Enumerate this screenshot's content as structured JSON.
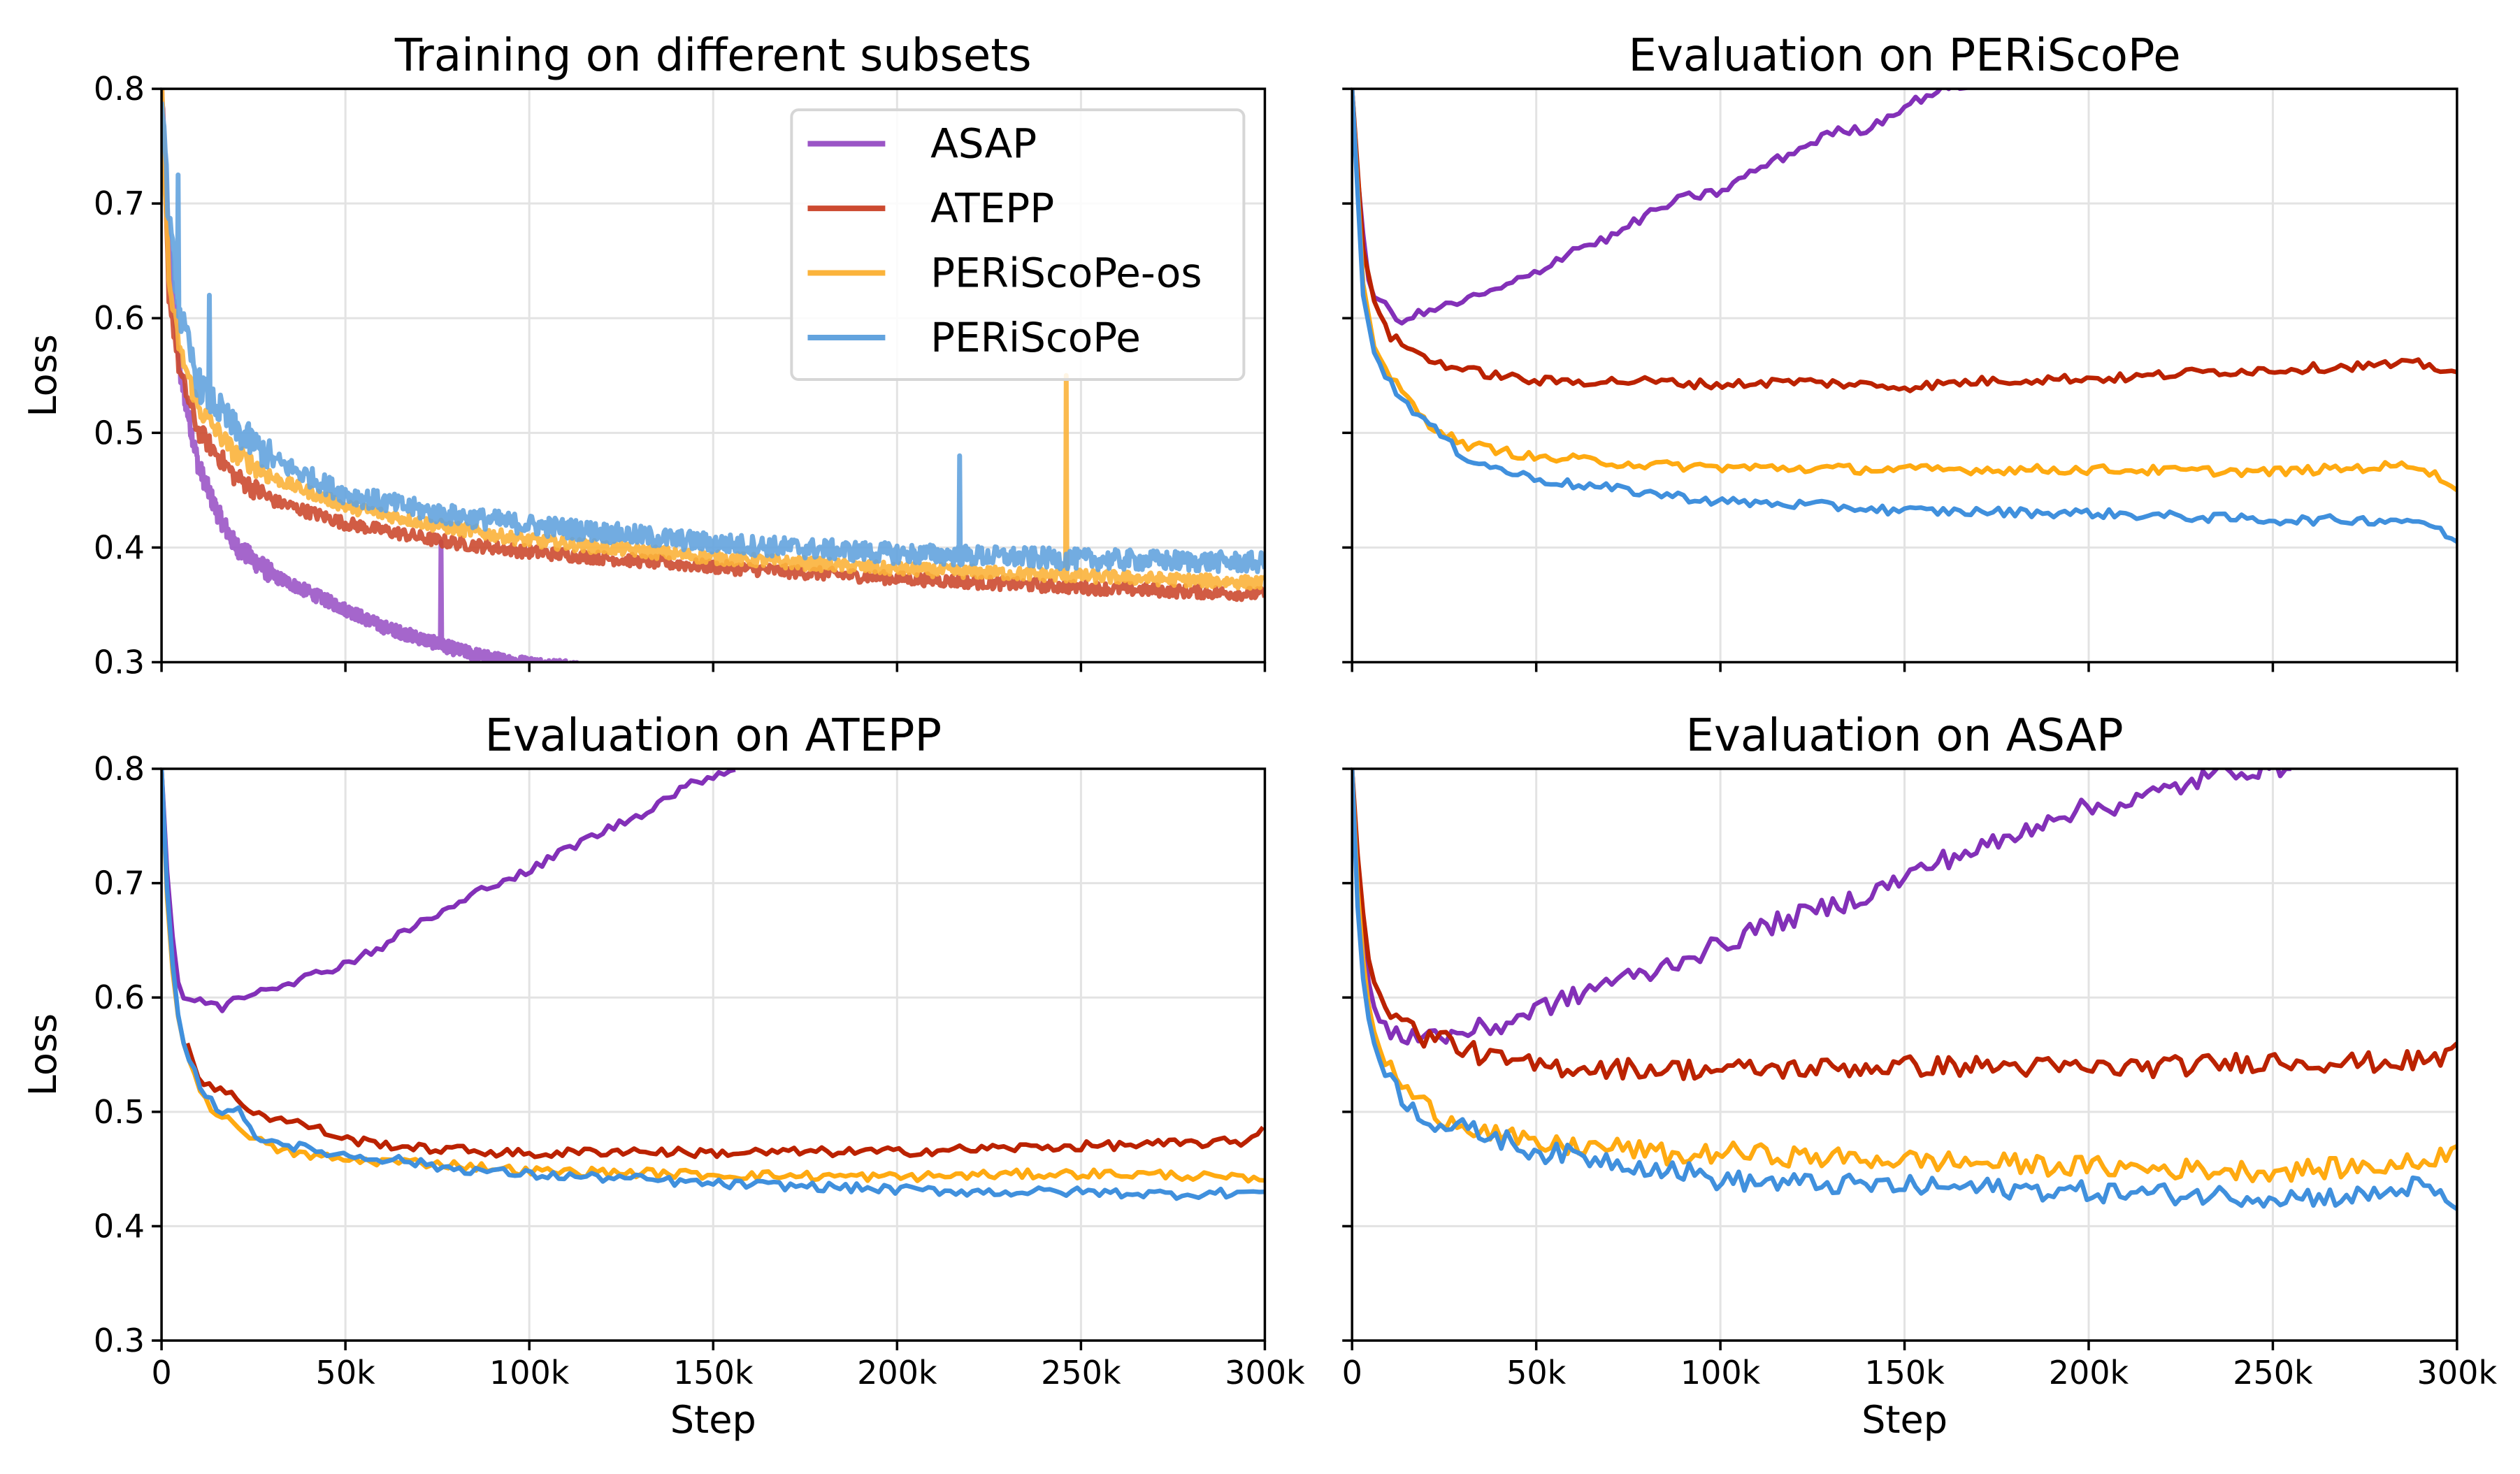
{
  "chart_data": [
    {
      "id": "train",
      "type": "line",
      "title": "Training on different subsets",
      "xlabel": "",
      "ylabel": "Loss",
      "xlim": [
        0,
        300000
      ],
      "ylim": [
        0.3,
        0.8
      ],
      "xticks": [
        0,
        50000,
        100000,
        150000,
        200000,
        250000,
        300000
      ],
      "xtick_labels": [
        "",
        "",
        "",
        "",
        "",
        "",
        ""
      ],
      "yticks": [
        0.3,
        0.4,
        0.5,
        0.6,
        0.7,
        0.8
      ],
      "ytick_labels": [
        "0.3",
        "0.4",
        "0.5",
        "0.6",
        "0.7",
        "0.8"
      ],
      "grid": true,
      "legend": "top-right",
      "noisy": true,
      "series": [
        {
          "name": "ASAP",
          "color": "#9b55c6",
          "x": [
            0,
            2000,
            5000,
            10000,
            15000,
            20000,
            30000,
            40000,
            50000,
            60000,
            70000,
            80000,
            90000,
            100000,
            110000,
            120000
          ],
          "y": [
            0.8,
            0.66,
            0.55,
            0.47,
            0.43,
            0.4,
            0.375,
            0.36,
            0.345,
            0.33,
            0.32,
            0.31,
            0.302,
            0.298,
            0.295,
            0.29
          ]
        },
        {
          "name": "ATEPP",
          "color": "#cc4a30",
          "x": [
            0,
            2000,
            5000,
            10000,
            20000,
            30000,
            50000,
            75000,
            100000,
            150000,
            200000,
            250000,
            300000
          ],
          "y": [
            0.8,
            0.62,
            0.55,
            0.5,
            0.46,
            0.44,
            0.42,
            0.405,
            0.395,
            0.382,
            0.372,
            0.364,
            0.358
          ]
        },
        {
          "name": "PERiScoPe-os",
          "color": "#fbb33b",
          "x": [
            0,
            2000,
            5000,
            10000,
            20000,
            30000,
            50000,
            75000,
            100000,
            150000,
            200000,
            250000,
            300000
          ],
          "y": [
            0.8,
            0.63,
            0.57,
            0.52,
            0.48,
            0.46,
            0.435,
            0.418,
            0.405,
            0.39,
            0.38,
            0.374,
            0.368
          ]
        },
        {
          "name": "PERiScoPe",
          "color": "#63a3de",
          "x": [
            0,
            2000,
            5000,
            10000,
            20000,
            30000,
            50000,
            75000,
            100000,
            150000,
            200000,
            250000,
            300000
          ],
          "y": [
            0.8,
            0.68,
            0.6,
            0.54,
            0.5,
            0.475,
            0.445,
            0.428,
            0.418,
            0.402,
            0.393,
            0.388,
            0.385
          ]
        }
      ],
      "annotations": [
        {
          "series": "ASAP",
          "x": 76000,
          "y": 0.405,
          "note": "spike"
        },
        {
          "series": "PERiScoPe-os",
          "x": 246000,
          "y": 0.55,
          "note": "spike"
        },
        {
          "series": "PERiScoPe",
          "x": 217000,
          "y": 0.48,
          "note": "spike"
        },
        {
          "series": "PERiScoPe",
          "x": 4500,
          "y": 0.725,
          "note": "spike"
        },
        {
          "series": "PERiScoPe",
          "x": 13000,
          "y": 0.62,
          "note": "spike"
        }
      ]
    },
    {
      "id": "eval_periscope",
      "type": "line",
      "title": "Evaluation on PERiScoPe",
      "xlabel": "",
      "ylabel": "",
      "xlim": [
        0,
        300000
      ],
      "ylim": [
        0.3,
        0.8
      ],
      "xticks": [
        0,
        50000,
        100000,
        150000,
        200000,
        250000,
        300000
      ],
      "xtick_labels": [
        "",
        "",
        "",
        "",
        "",
        "",
        ""
      ],
      "yticks": [
        0.3,
        0.4,
        0.5,
        0.6,
        0.7,
        0.8
      ],
      "ytick_labels": [
        "",
        "",
        "",
        "",
        "",
        ""
      ],
      "grid": true,
      "noisy": false,
      "series": [
        {
          "name": "ASAP",
          "color": "#8330b8",
          "x": [
            0,
            2000,
            5000,
            8000,
            12000,
            20000,
            30000,
            40000,
            50000,
            60000,
            70000,
            80000,
            90000,
            100000,
            110000,
            120000,
            130000,
            140000,
            150000,
            160000,
            170000
          ],
          "y": [
            0.8,
            0.7,
            0.62,
            0.615,
            0.598,
            0.605,
            0.615,
            0.625,
            0.64,
            0.66,
            0.67,
            0.69,
            0.705,
            0.71,
            0.73,
            0.745,
            0.762,
            0.765,
            0.785,
            0.8,
            0.805
          ]
        },
        {
          "name": "ATEPP",
          "color": "#bb2200",
          "x": [
            0,
            3000,
            6000,
            10000,
            15000,
            20000,
            25000,
            30000,
            40000,
            50000,
            60000,
            80000,
            100000,
            120000,
            150000,
            170000,
            190000,
            210000,
            230000,
            250000,
            270000,
            290000,
            300000
          ],
          "y": [
            0.8,
            0.66,
            0.615,
            0.585,
            0.575,
            0.565,
            0.56,
            0.555,
            0.55,
            0.545,
            0.545,
            0.545,
            0.542,
            0.545,
            0.54,
            0.545,
            0.547,
            0.548,
            0.553,
            0.555,
            0.558,
            0.56,
            0.553
          ]
        },
        {
          "name": "PERiScoPe-os",
          "color": "#ffaa11",
          "x": [
            0,
            3000,
            6000,
            10000,
            15000,
            20000,
            25000,
            30000,
            40000,
            50000,
            60000,
            80000,
            100000,
            150000,
            200000,
            250000,
            290000,
            300000
          ],
          "y": [
            0.8,
            0.63,
            0.575,
            0.55,
            0.53,
            0.51,
            0.5,
            0.49,
            0.485,
            0.478,
            0.477,
            0.472,
            0.47,
            0.468,
            0.468,
            0.466,
            0.472,
            0.45
          ]
        },
        {
          "name": "PERiScoPe",
          "color": "#4090dd",
          "x": [
            0,
            3000,
            6000,
            10000,
            15000,
            20000,
            25000,
            30000,
            40000,
            50000,
            60000,
            80000,
            100000,
            125000,
            150000,
            200000,
            250000,
            290000,
            300000
          ],
          "y": [
            0.8,
            0.62,
            0.57,
            0.545,
            0.525,
            0.51,
            0.495,
            0.48,
            0.468,
            0.46,
            0.455,
            0.448,
            0.44,
            0.437,
            0.432,
            0.43,
            0.424,
            0.424,
            0.405
          ]
        }
      ]
    },
    {
      "id": "eval_atepp",
      "type": "line",
      "title": "Evaluation on ATEPP",
      "xlabel": "Step",
      "ylabel": "Loss",
      "xlim": [
        0,
        300000
      ],
      "ylim": [
        0.3,
        0.8
      ],
      "xticks": [
        0,
        50000,
        100000,
        150000,
        200000,
        250000,
        300000
      ],
      "xtick_labels": [
        "0",
        "50k",
        "100k",
        "150k",
        "200k",
        "250k",
        "300k"
      ],
      "yticks": [
        0.3,
        0.4,
        0.5,
        0.6,
        0.7,
        0.8
      ],
      "ytick_labels": [
        "0.3",
        "0.4",
        "0.5",
        "0.6",
        "0.7",
        "0.8"
      ],
      "grid": true,
      "noisy": false,
      "series": [
        {
          "name": "ASAP",
          "color": "#8330b8",
          "x": [
            0,
            2000,
            5000,
            8000,
            12000,
            16000,
            20000,
            30000,
            40000,
            50000,
            60000,
            70000,
            80000,
            90000,
            100000,
            110000,
            120000,
            130000,
            140000,
            150000,
            157000
          ],
          "y": [
            0.8,
            0.68,
            0.6,
            0.598,
            0.597,
            0.59,
            0.6,
            0.61,
            0.618,
            0.63,
            0.645,
            0.665,
            0.68,
            0.7,
            0.71,
            0.73,
            0.745,
            0.76,
            0.78,
            0.795,
            0.8
          ]
        },
        {
          "name": "ATEPP",
          "color": "#bb2200",
          "x": [
            7000,
            10000,
            15000,
            20000,
            25000,
            30000,
            40000,
            50000,
            60000,
            70000,
            80000,
            100000,
            125000,
            150000,
            175000,
            200000,
            225000,
            250000,
            275000,
            295000,
            300000
          ],
          "y": [
            0.56,
            0.53,
            0.52,
            0.513,
            0.5,
            0.495,
            0.488,
            0.476,
            0.472,
            0.468,
            0.467,
            0.463,
            0.466,
            0.464,
            0.465,
            0.465,
            0.468,
            0.47,
            0.472,
            0.474,
            0.488
          ]
        },
        {
          "name": "PERiScoPe-os",
          "color": "#ffaa11",
          "x": [
            0,
            2000,
            5000,
            8000,
            12000,
            16000,
            20000,
            25000,
            30000,
            40000,
            50000,
            75000,
            100000,
            125000,
            150000,
            175000,
            200000,
            225000,
            250000,
            275000,
            300000
          ],
          "y": [
            0.8,
            0.65,
            0.57,
            0.54,
            0.51,
            0.495,
            0.49,
            0.478,
            0.468,
            0.462,
            0.458,
            0.455,
            0.448,
            0.447,
            0.445,
            0.444,
            0.443,
            0.445,
            0.446,
            0.445,
            0.44
          ]
        },
        {
          "name": "PERiScoPe",
          "color": "#4090dd",
          "x": [
            0,
            2000,
            5000,
            8000,
            12000,
            16000,
            20000,
            25000,
            30000,
            40000,
            50000,
            65000,
            75000,
            100000,
            125000,
            150000,
            175000,
            200000,
            225000,
            250000,
            275000,
            300000
          ],
          "y": [
            0.8,
            0.66,
            0.57,
            0.54,
            0.515,
            0.5,
            0.505,
            0.48,
            0.475,
            0.467,
            0.462,
            0.458,
            0.452,
            0.445,
            0.442,
            0.437,
            0.435,
            0.432,
            0.43,
            0.43,
            0.428,
            0.43
          ]
        }
      ]
    },
    {
      "id": "eval_asap",
      "type": "line",
      "title": "Evaluation on ASAP",
      "xlabel": "Step",
      "ylabel": "",
      "xlim": [
        0,
        300000
      ],
      "ylim": [
        0.3,
        0.8
      ],
      "xticks": [
        0,
        50000,
        100000,
        150000,
        200000,
        250000,
        300000
      ],
      "xtick_labels": [
        "0",
        "50k",
        "100k",
        "150k",
        "200k",
        "250k",
        "300k"
      ],
      "yticks": [
        0.3,
        0.4,
        0.5,
        0.6,
        0.7,
        0.8
      ],
      "ytick_labels": [
        "",
        "",
        "",
        "",
        "",
        ""
      ],
      "grid": true,
      "noisy": false,
      "series": [
        {
          "name": "ASAP",
          "color": "#8330b8",
          "x": [
            0,
            2000,
            5000,
            8000,
            12000,
            20000,
            25000,
            30000,
            40000,
            50000,
            60000,
            70000,
            80000,
            90000,
            100000,
            110000,
            120000,
            130000,
            140000,
            150000,
            160000,
            170000,
            180000,
            190000,
            200000,
            210000,
            220000,
            230000,
            240000,
            250000,
            255000
          ],
          "y": [
            0.8,
            0.68,
            0.6,
            0.575,
            0.565,
            0.57,
            0.565,
            0.57,
            0.575,
            0.59,
            0.6,
            0.615,
            0.62,
            0.635,
            0.645,
            0.66,
            0.67,
            0.68,
            0.69,
            0.705,
            0.72,
            0.73,
            0.74,
            0.76,
            0.765,
            0.77,
            0.78,
            0.79,
            0.8,
            0.8,
            0.8
          ]
        },
        {
          "name": "ATEPP",
          "color": "#bb2200",
          "x": [
            0,
            2000,
            5000,
            8000,
            12000,
            16000,
            20000,
            25000,
            30000,
            40000,
            50000,
            75000,
            100000,
            125000,
            150000,
            175000,
            200000,
            225000,
            250000,
            275000,
            295000,
            300000
          ],
          "y": [
            0.8,
            0.7,
            0.62,
            0.6,
            0.585,
            0.573,
            0.565,
            0.565,
            0.555,
            0.545,
            0.54,
            0.538,
            0.537,
            0.538,
            0.54,
            0.54,
            0.538,
            0.54,
            0.545,
            0.543,
            0.545,
            0.56
          ]
        },
        {
          "name": "PERiScoPe-os",
          "color": "#ffaa11",
          "x": [
            0,
            2000,
            5000,
            8000,
            12000,
            16000,
            20000,
            25000,
            30000,
            40000,
            50000,
            60000,
            75000,
            90000,
            100000,
            125000,
            150000,
            175000,
            200000,
            225000,
            250000,
            275000,
            290000,
            300000
          ],
          "y": [
            0.8,
            0.66,
            0.58,
            0.55,
            0.53,
            0.515,
            0.505,
            0.495,
            0.49,
            0.48,
            0.47,
            0.47,
            0.468,
            0.46,
            0.465,
            0.46,
            0.458,
            0.455,
            0.452,
            0.45,
            0.448,
            0.452,
            0.455,
            0.47
          ]
        },
        {
          "name": "PERiScoPe",
          "color": "#4090dd",
          "x": [
            0,
            2000,
            5000,
            8000,
            12000,
            16000,
            20000,
            25000,
            30000,
            40000,
            50000,
            60000,
            75000,
            90000,
            100000,
            125000,
            150000,
            175000,
            200000,
            225000,
            250000,
            275000,
            290000,
            300000
          ],
          "y": [
            0.8,
            0.64,
            0.57,
            0.54,
            0.52,
            0.505,
            0.495,
            0.487,
            0.485,
            0.477,
            0.465,
            0.462,
            0.455,
            0.448,
            0.44,
            0.437,
            0.435,
            0.433,
            0.43,
            0.428,
            0.426,
            0.426,
            0.436,
            0.415
          ]
        }
      ]
    }
  ]
}
